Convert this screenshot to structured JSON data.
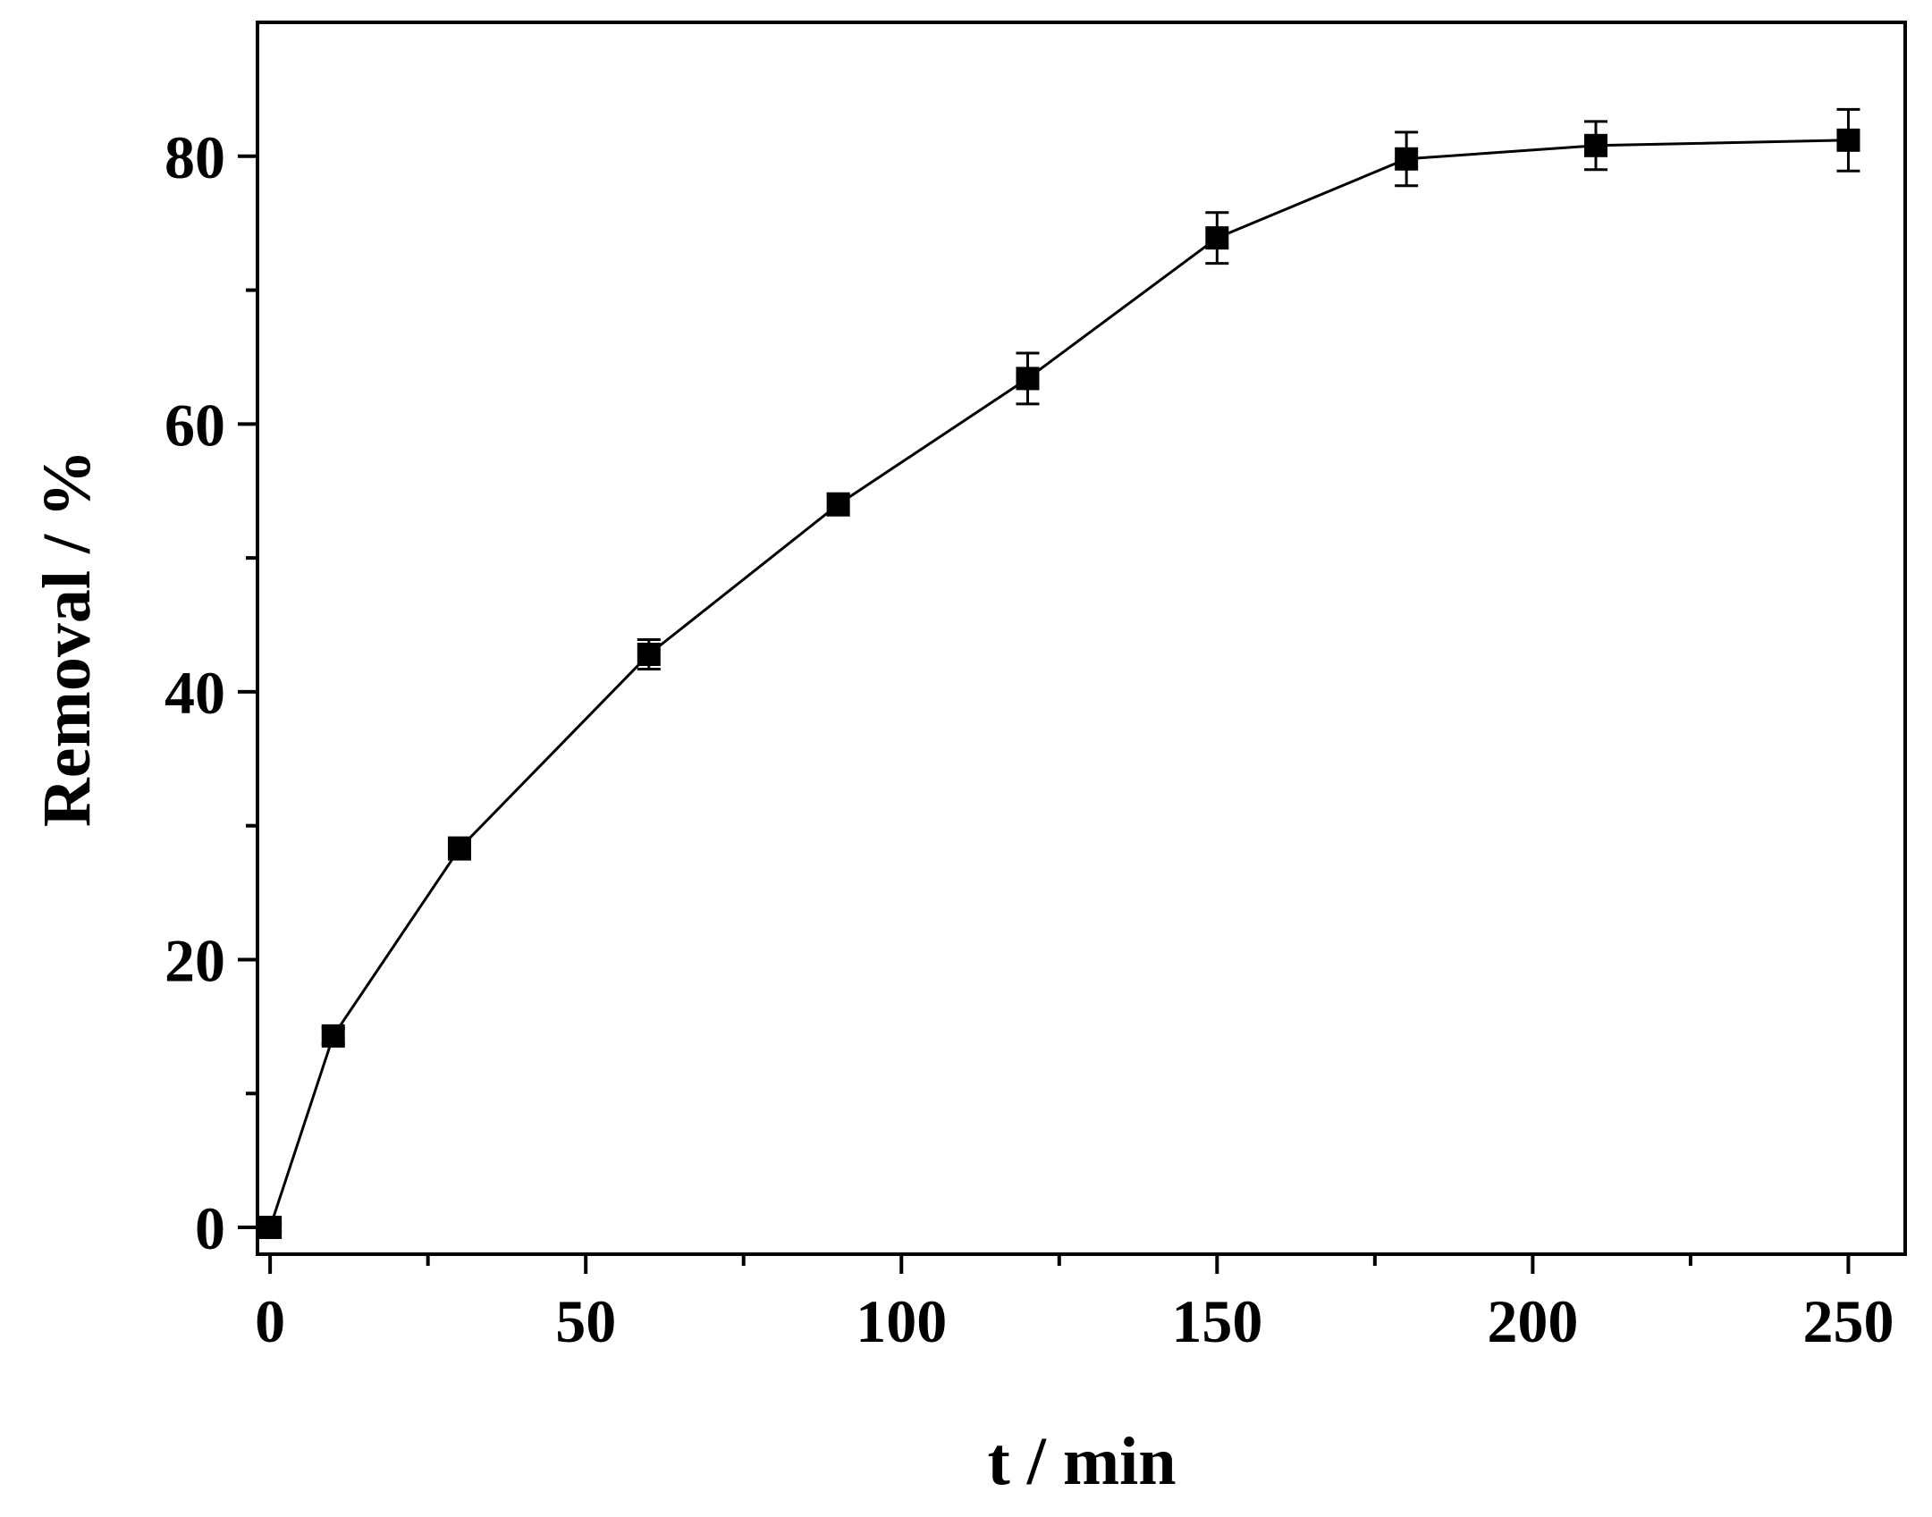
{
  "chart_data": {
    "type": "line",
    "title": "",
    "xlabel": "t / min",
    "ylabel": "Removal / %",
    "xlim": [
      -2,
      259
    ],
    "ylim": [
      -2,
      90
    ],
    "x_ticks": [
      0,
      50,
      100,
      150,
      200,
      250
    ],
    "x_minor_ticks": [
      25,
      75,
      125,
      175,
      225
    ],
    "y_ticks": [
      0,
      20,
      40,
      60,
      80
    ],
    "y_minor_ticks": [
      10,
      30,
      50,
      70
    ],
    "grid": false,
    "legend": "none",
    "marker": "square",
    "color": "#000000",
    "series": [
      {
        "x": [
          0,
          10,
          30,
          60,
          90,
          120,
          150,
          180,
          210,
          250
        ],
        "y": [
          0,
          14.3,
          28.3,
          42.8,
          54.0,
          63.4,
          73.9,
          79.8,
          80.8,
          81.2
        ],
        "error": [
          0.3,
          0.6,
          0.8,
          1.1,
          0.8,
          1.9,
          1.9,
          2.0,
          1.8,
          2.3
        ]
      }
    ]
  }
}
